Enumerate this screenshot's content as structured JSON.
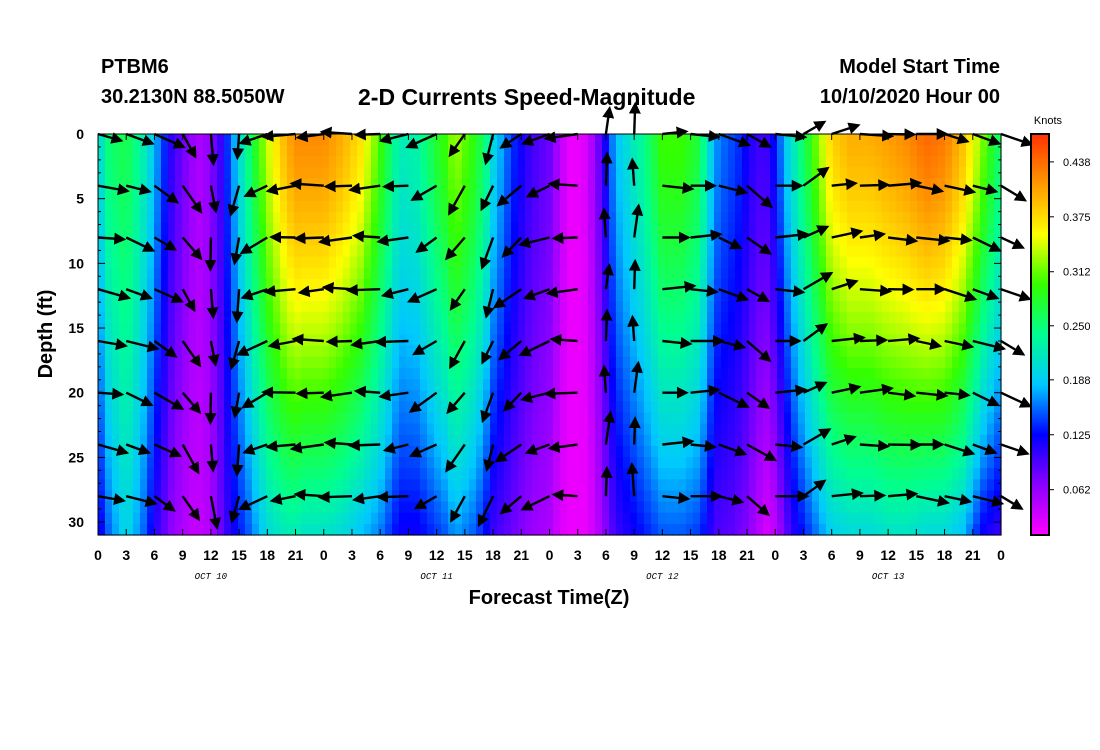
{
  "header": {
    "station": "PTBM6",
    "coords": "30.2130N 88.5050W",
    "title": "2-D Currents Speed-Magnitude",
    "start_label": "Model Start Time",
    "start_time": "10/10/2020 Hour 00"
  },
  "chart_data": {
    "type": "heatmap",
    "title": "2-D Currents Speed-Magnitude",
    "xlabel": "Forecast Time(Z)",
    "ylabel": "Depth (ft)",
    "x_tick_labels": [
      "0",
      "3",
      "6",
      "9",
      "12",
      "15",
      "18",
      "21",
      "0",
      "3",
      "6",
      "9",
      "12",
      "15",
      "18",
      "21",
      "0",
      "3",
      "6",
      "9",
      "12",
      "15",
      "18",
      "21",
      "0",
      "3",
      "6",
      "9",
      "12",
      "15",
      "18",
      "21",
      "0"
    ],
    "day_labels": [
      "OCT 10",
      "OCT 11",
      "OCT 12",
      "OCT 13"
    ],
    "xlim_hours": [
      0,
      96
    ],
    "y_ticks": [
      0,
      5,
      10,
      15,
      20,
      25,
      30
    ],
    "ylim": [
      0,
      31
    ],
    "y_inverted": true,
    "colorbar": {
      "label": "Knots",
      "tick_labels": [
        "0.438",
        "0.375",
        "0.312",
        "0.250",
        "0.188",
        "0.125",
        "0.062"
      ],
      "tick_values": [
        0.438,
        0.375,
        0.312,
        0.25,
        0.188,
        0.125,
        0.062
      ],
      "range": [
        0.01,
        0.47
      ],
      "colors": [
        "#ff00ff",
        "#8a00ff",
        "#0000ff",
        "#00c8ff",
        "#00ff90",
        "#33ff00",
        "#ffff00",
        "#ff9900",
        "#ff3300"
      ]
    },
    "speed_profile_hours": [
      0,
      1,
      3,
      5,
      6,
      8,
      10,
      11,
      12,
      13,
      14,
      16,
      18,
      20,
      21,
      22,
      24,
      26,
      28,
      30,
      32,
      34,
      36,
      37,
      38,
      40,
      41,
      42,
      44,
      46,
      48,
      49,
      50,
      51,
      52,
      53,
      54,
      55,
      56,
      58,
      60,
      62,
      64,
      65,
      66,
      67,
      68,
      69,
      70,
      71,
      72,
      73,
      74,
      76,
      78,
      80,
      82,
      84,
      86,
      88,
      90,
      92,
      94,
      96
    ],
    "speed_profile_surface": [
      0.19,
      0.25,
      0.27,
      0.22,
      0.18,
      0.1,
      0.06,
      0.05,
      0.07,
      0.1,
      0.15,
      0.25,
      0.34,
      0.4,
      0.42,
      0.42,
      0.42,
      0.4,
      0.37,
      0.3,
      0.22,
      0.23,
      0.28,
      0.3,
      0.33,
      0.29,
      0.26,
      0.2,
      0.14,
      0.1,
      0.08,
      0.05,
      0.02,
      0.02,
      0.03,
      0.07,
      0.12,
      0.18,
      0.2,
      0.24,
      0.3,
      0.3,
      0.27,
      0.2,
      0.16,
      0.15,
      0.14,
      0.12,
      0.1,
      0.1,
      0.13,
      0.18,
      0.22,
      0.3,
      0.38,
      0.4,
      0.4,
      0.41,
      0.42,
      0.44,
      0.43,
      0.39,
      0.32,
      0.25
    ],
    "speed_profile_bottom": [
      0.11,
      0.15,
      0.2,
      0.15,
      0.11,
      0.06,
      0.04,
      0.04,
      0.05,
      0.08,
      0.11,
      0.15,
      0.2,
      0.22,
      0.22,
      0.21,
      0.21,
      0.2,
      0.18,
      0.16,
      0.12,
      0.12,
      0.14,
      0.15,
      0.17,
      0.15,
      0.13,
      0.1,
      0.08,
      0.06,
      0.05,
      0.03,
      0.02,
      0.02,
      0.02,
      0.04,
      0.07,
      0.1,
      0.11,
      0.13,
      0.15,
      0.15,
      0.14,
      0.11,
      0.09,
      0.09,
      0.08,
      0.07,
      0.05,
      0.03,
      0.04,
      0.08,
      0.11,
      0.15,
      0.19,
      0.2,
      0.2,
      0.21,
      0.21,
      0.2,
      0.2,
      0.18,
      0.12,
      0.1
    ],
    "vector_hours": [
      0,
      3,
      6,
      9,
      12,
      15,
      18,
      21,
      24,
      27,
      30,
      33,
      36,
      39,
      42,
      45,
      48,
      51,
      54,
      57,
      60,
      63,
      66,
      69,
      72,
      75,
      78,
      81,
      84,
      87,
      90,
      93,
      96
    ],
    "vector_directions_deg": [
      -10,
      -20,
      -30,
      -55,
      -85,
      -100,
      -155,
      -175,
      -178,
      -178,
      -178,
      -172,
      -150,
      -125,
      -110,
      -140,
      -160,
      -178,
      88,
      88,
      0,
      0,
      -20,
      -35,
      0,
      30,
      12,
      2,
      -1,
      -6,
      -12,
      -20,
      -25
    ],
    "vector_depths_ft": [
      0,
      4,
      8,
      12,
      16,
      20,
      24,
      28
    ]
  }
}
